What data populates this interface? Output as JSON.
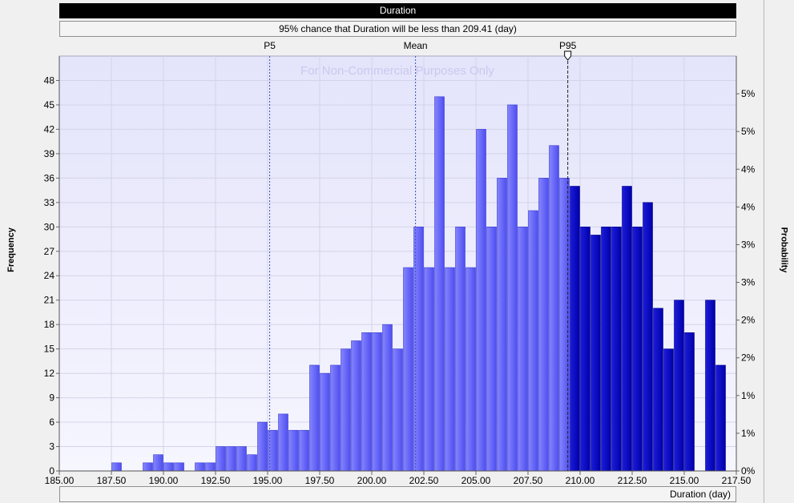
{
  "chart_data": {
    "type": "bar",
    "title": "Duration",
    "subtitle": "95% chance that Duration will be less than 209.41 (day)",
    "xlabel": "Duration (day)",
    "ylabel": "Frequency",
    "y2label": "Probability",
    "watermark": "For Non-Commercial Purposes Only",
    "xlim": [
      185,
      217.5
    ],
    "ylim": [
      0,
      51
    ],
    "y2lim": [
      0,
      0.051
    ],
    "grid": true,
    "bin_width": 0.5,
    "x": [
      187.75,
      189.25,
      189.75,
      190.25,
      190.75,
      191.75,
      192.25,
      192.75,
      193.25,
      193.75,
      194.25,
      194.75,
      195.25,
      195.75,
      196.25,
      196.75,
      197.25,
      197.75,
      198.25,
      198.75,
      199.25,
      199.75,
      200.25,
      200.75,
      201.25,
      201.75,
      202.25,
      202.75,
      203.25,
      203.75,
      204.25,
      204.75,
      205.25,
      205.75,
      206.25,
      206.75,
      207.25,
      207.75,
      208.25,
      208.75,
      209.25,
      209.75,
      210.25,
      210.75,
      211.25,
      211.75,
      212.25,
      212.75,
      213.25,
      213.75,
      214.25,
      214.75,
      215.25,
      216.25,
      216.75
    ],
    "values": [
      1,
      1,
      2,
      1,
      1,
      1,
      1,
      3,
      3,
      3,
      2,
      6,
      5,
      7,
      5,
      5,
      13,
      12,
      13,
      15,
      16,
      17,
      17,
      18,
      15,
      25,
      30,
      25,
      46,
      25,
      30,
      25,
      42,
      30,
      36,
      45,
      30,
      32,
      36,
      40,
      36,
      35,
      30,
      29,
      30,
      30,
      35,
      30,
      33,
      20,
      15,
      21,
      17,
      21,
      13
    ],
    "series": [
      {
        "name": "P5 percentile",
        "value": 195.1
      },
      {
        "name": "Mean",
        "value": 202.1
      },
      {
        "name": "P95 percentile",
        "value": 209.41
      }
    ],
    "markers": [
      {
        "label": "P5",
        "value": 195.1
      },
      {
        "label": "Mean",
        "value": 202.1
      },
      {
        "label": "P95",
        "value": 209.41
      }
    ],
    "xticks": [
      "185.00",
      "187.50",
      "190.00",
      "192.50",
      "195.00",
      "197.50",
      "200.00",
      "202.50",
      "205.00",
      "207.50",
      "210.00",
      "212.50",
      "215.00",
      "217.50"
    ],
    "yticks": [
      "0",
      "3",
      "6",
      "9",
      "12",
      "15",
      "18",
      "21",
      "24",
      "27",
      "30",
      "33",
      "36",
      "39",
      "42",
      "45",
      "48"
    ],
    "y2ticks": [
      "0%",
      "1%",
      "1%",
      "2%",
      "2%",
      "3%",
      "3%",
      "4%",
      "4%",
      "5%",
      "5%"
    ],
    "colors": {
      "bar": "#6666ff",
      "bar_tail": "#0000cc",
      "plot_bg": "#eaeaff"
    }
  }
}
